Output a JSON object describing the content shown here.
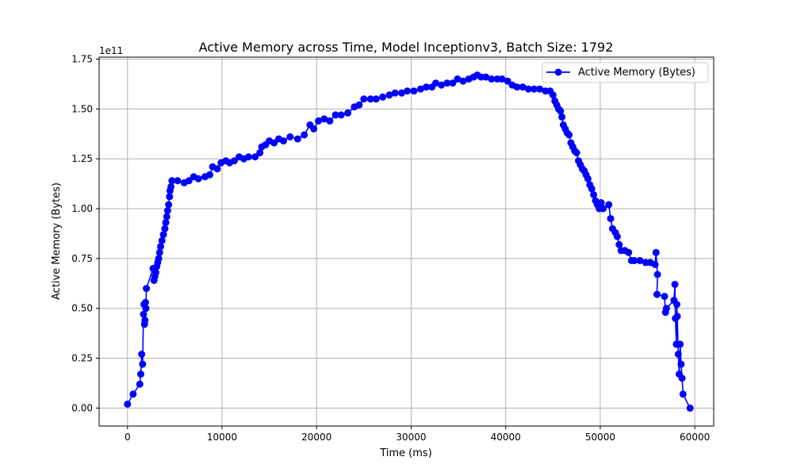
{
  "chart_data": {
    "type": "line",
    "title": "Active Memory across Time, Model Inceptionv3, Batch Size: 1792",
    "xlabel": "Time (ms)",
    "ylabel": "Active Memory (Bytes)",
    "y_offset_label": "1e11",
    "xlim": [
      -3000,
      62000
    ],
    "ylim": [
      -9000000000.0,
      176000000000.0
    ],
    "x_ticks": [
      0,
      10000,
      20000,
      30000,
      40000,
      50000,
      60000
    ],
    "x_tick_labels": [
      "0",
      "10000",
      "20000",
      "30000",
      "40000",
      "50000",
      "60000"
    ],
    "y_ticks": [
      0,
      25000000000.0,
      50000000000.0,
      75000000000.0,
      100000000000.0,
      125000000000.0,
      150000000000.0,
      175000000000.0
    ],
    "y_tick_labels": [
      "0.00",
      "0.25",
      "0.50",
      "0.75",
      "1.00",
      "1.25",
      "1.50",
      "1.75"
    ],
    "grid": true,
    "legend_position": "top-right",
    "colors": {
      "series": "#0000ff",
      "grid": "#b0b0b0"
    },
    "series": [
      {
        "name": "Active Memory (Bytes)",
        "points": [
          [
            0,
            2000000000.0
          ],
          [
            600,
            7000000000.0
          ],
          [
            1300,
            12000000000.0
          ],
          [
            1400,
            17000000000.0
          ],
          [
            1500,
            27000000000.0
          ],
          [
            1600,
            22000000000.0
          ],
          [
            1700,
            47000000000.0
          ],
          [
            1750,
            52000000000.0
          ],
          [
            1800,
            42000000000.0
          ],
          [
            1850,
            44000000000.0
          ],
          [
            1900,
            53000000000.0
          ],
          [
            1950,
            50000000000.0
          ],
          [
            2000,
            60000000000.0
          ],
          [
            2700,
            70000000000.0
          ],
          [
            2800,
            64000000000.0
          ],
          [
            2900,
            66000000000.0
          ],
          [
            3000,
            68000000000.0
          ],
          [
            3100,
            71000000000.0
          ],
          [
            3200,
            73000000000.0
          ],
          [
            3300,
            75000000000.0
          ],
          [
            3400,
            78000000000.0
          ],
          [
            3500,
            81000000000.0
          ],
          [
            3650,
            84000000000.0
          ],
          [
            3800,
            87000000000.0
          ],
          [
            3950,
            90000000000.0
          ],
          [
            4050,
            93000000000.0
          ],
          [
            4150,
            96000000000.0
          ],
          [
            4250,
            99000000000.0
          ],
          [
            4350,
            102000000000.0
          ],
          [
            4450,
            106000000000.0
          ],
          [
            4500,
            109000000000.0
          ],
          [
            4600,
            111000000000.0
          ],
          [
            4700,
            114000000000.0
          ],
          [
            5300,
            114000000000.0
          ],
          [
            6000,
            113000000000.0
          ],
          [
            6500,
            114000000000.0
          ],
          [
            7000,
            116000000000.0
          ],
          [
            7500,
            115000000000.0
          ],
          [
            8200,
            116000000000.0
          ],
          [
            8700,
            117000000000.0
          ],
          [
            9000,
            121000000000.0
          ],
          [
            9500,
            120000000000.0
          ],
          [
            9900,
            123000000000.0
          ],
          [
            10400,
            124000000000.0
          ],
          [
            10800,
            123000000000.0
          ],
          [
            11300,
            124000000000.0
          ],
          [
            11800,
            126000000000.0
          ],
          [
            12300,
            125000000000.0
          ],
          [
            12800,
            126000000000.0
          ],
          [
            13500,
            126000000000.0
          ],
          [
            14000,
            128000000000.0
          ],
          [
            14200,
            131000000000.0
          ],
          [
            14600,
            132000000000.0
          ],
          [
            15000,
            134000000000.0
          ],
          [
            15500,
            133000000000.0
          ],
          [
            16000,
            135000000000.0
          ],
          [
            16500,
            134000000000.0
          ],
          [
            17200,
            136000000000.0
          ],
          [
            18000,
            135000000000.0
          ],
          [
            18700,
            137000000000.0
          ],
          [
            19300,
            142000000000.0
          ],
          [
            19700,
            140000000000.0
          ],
          [
            20200,
            144000000000.0
          ],
          [
            20800,
            145000000000.0
          ],
          [
            21400,
            144000000000.0
          ],
          [
            22000,
            147000000000.0
          ],
          [
            22600,
            147000000000.0
          ],
          [
            23300,
            148000000000.0
          ],
          [
            24000,
            151000000000.0
          ],
          [
            24500,
            152000000000.0
          ],
          [
            25000,
            155000000000.0
          ],
          [
            25700,
            155000000000.0
          ],
          [
            26300,
            155000000000.0
          ],
          [
            27000,
            156000000000.0
          ],
          [
            27700,
            157000000000.0
          ],
          [
            28300,
            158000000000.0
          ],
          [
            29000,
            158000000000.0
          ],
          [
            29600,
            159000000000.0
          ],
          [
            30300,
            159000000000.0
          ],
          [
            31000,
            160000000000.0
          ],
          [
            31600,
            161000000000.0
          ],
          [
            32200,
            161000000000.0
          ],
          [
            32600,
            163000000000.0
          ],
          [
            33200,
            162000000000.0
          ],
          [
            33800,
            163000000000.0
          ],
          [
            34400,
            163000000000.0
          ],
          [
            34900,
            165000000000.0
          ],
          [
            35500,
            164000000000.0
          ],
          [
            36100,
            165000000000.0
          ],
          [
            36600,
            166000000000.0
          ],
          [
            37000,
            167000000000.0
          ],
          [
            37400,
            166000000000.0
          ],
          [
            37900,
            166000000000.0
          ],
          [
            38500,
            165000000000.0
          ],
          [
            39100,
            165000000000.0
          ],
          [
            39600,
            165000000000.0
          ],
          [
            40200,
            164000000000.0
          ],
          [
            40700,
            162000000000.0
          ],
          [
            41200,
            161000000000.0
          ],
          [
            41800,
            161000000000.0
          ],
          [
            42400,
            160000000000.0
          ],
          [
            43000,
            160000000000.0
          ],
          [
            43600,
            160000000000.0
          ],
          [
            44200,
            159000000000.0
          ],
          [
            44700,
            159000000000.0
          ],
          [
            45000,
            157000000000.0
          ],
          [
            45200,
            154000000000.0
          ],
          [
            45400,
            152000000000.0
          ],
          [
            45600,
            150000000000.0
          ],
          [
            45800,
            149000000000.0
          ],
          [
            45950,
            146000000000.0
          ],
          [
            46100,
            142000000000.0
          ],
          [
            46300,
            140000000000.0
          ],
          [
            46500,
            138000000000.0
          ],
          [
            46700,
            137000000000.0
          ],
          [
            46900,
            133000000000.0
          ],
          [
            47100,
            131000000000.0
          ],
          [
            47300,
            129000000000.0
          ],
          [
            47500,
            128000000000.0
          ],
          [
            47700,
            124000000000.0
          ],
          [
            47900,
            122000000000.0
          ],
          [
            48100,
            120000000000.0
          ],
          [
            48300,
            119000000000.0
          ],
          [
            48500,
            117000000000.0
          ],
          [
            48700,
            115000000000.0
          ],
          [
            48900,
            112000000000.0
          ],
          [
            49100,
            110000000000.0
          ],
          [
            49300,
            107000000000.0
          ],
          [
            49500,
            104000000000.0
          ],
          [
            49700,
            102000000000.0
          ],
          [
            49900,
            100000000000.0
          ],
          [
            50100,
            103000000000.0
          ],
          [
            50300,
            100000000000.0
          ],
          [
            50900,
            102000000000.0
          ],
          [
            51100,
            95000000000.0
          ],
          [
            51300,
            90000000000.0
          ],
          [
            51600,
            88000000000.0
          ],
          [
            51800,
            86000000000.0
          ],
          [
            52000,
            82000000000.0
          ],
          [
            52200,
            79000000000.0
          ],
          [
            52600,
            79000000000.0
          ],
          [
            53000,
            78000000000.0
          ],
          [
            53300,
            74000000000.0
          ],
          [
            53600,
            74000000000.0
          ],
          [
            54200,
            74000000000.0
          ],
          [
            54800,
            73000000000.0
          ],
          [
            55300,
            73000000000.0
          ],
          [
            55800,
            72000000000.0
          ],
          [
            55900,
            78000000000.0
          ],
          [
            56050,
            67000000000.0
          ],
          [
            56000,
            57000000000.0
          ],
          [
            56800,
            56000000000.0
          ],
          [
            56900,
            48000000000.0
          ],
          [
            57000,
            50000000000.0
          ],
          [
            57800,
            54000000000.0
          ],
          [
            57900,
            62000000000.0
          ],
          [
            57950,
            45000000000.0
          ],
          [
            58050,
            32000000000.0
          ],
          [
            58100,
            52000000000.0
          ],
          [
            58150,
            46000000000.0
          ],
          [
            58250,
            27000000000.0
          ],
          [
            58350,
            17000000000.0
          ],
          [
            58450,
            32000000000.0
          ],
          [
            58550,
            22000000000.0
          ],
          [
            58650,
            15000000000.0
          ],
          [
            58750,
            7000000000.0
          ],
          [
            59500,
            0.0
          ]
        ]
      }
    ]
  }
}
